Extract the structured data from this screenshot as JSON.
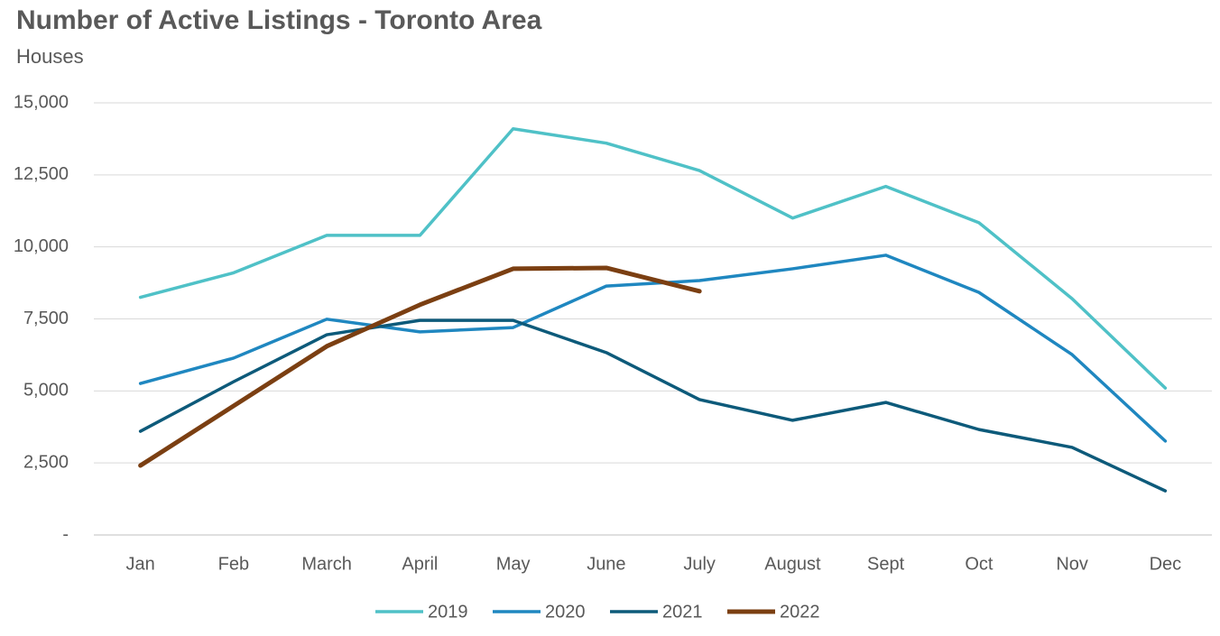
{
  "chart_data": {
    "type": "line",
    "title": "Number of Active Listings - Toronto Area",
    "subtitle": "Houses",
    "categories": [
      "Jan",
      "Feb",
      "March",
      "April",
      "May",
      "June",
      "July",
      "August",
      "Sept",
      "Oct",
      "Nov",
      "Dec"
    ],
    "series": [
      {
        "name": "2019",
        "color": "#4fc1c7",
        "values": [
          8250,
          9100,
          10400,
          10400,
          14100,
          13600,
          12650,
          11000,
          12100,
          10840,
          8200,
          5100
        ]
      },
      {
        "name": "2020",
        "color": "#1f87c0",
        "values": [
          5260,
          6140,
          7490,
          7050,
          7200,
          8640,
          8830,
          9240,
          9710,
          8420,
          6260,
          3260
        ]
      },
      {
        "name": "2021",
        "color": "#0d5a7a",
        "values": [
          3600,
          5320,
          6950,
          7450,
          7450,
          6330,
          4700,
          3980,
          4600,
          3660,
          3040,
          1530
        ]
      },
      {
        "name": "2022",
        "color": "#7b3f12",
        "values": [
          2410,
          4480,
          6550,
          7990,
          9240,
          9270,
          8460,
          null,
          null,
          null,
          null,
          null
        ]
      }
    ],
    "ylim": [
      0,
      15000
    ],
    "yticks": [
      {
        "value": 0,
        "label": "-"
      },
      {
        "value": 2500,
        "label": "2,500"
      },
      {
        "value": 5000,
        "label": "5,000"
      },
      {
        "value": 7500,
        "label": "7,500"
      },
      {
        "value": 10000,
        "label": "10,000"
      },
      {
        "value": 12500,
        "label": "12,500"
      },
      {
        "value": 15000,
        "label": "15,000"
      }
    ],
    "grid": true,
    "legend": "bottom"
  }
}
